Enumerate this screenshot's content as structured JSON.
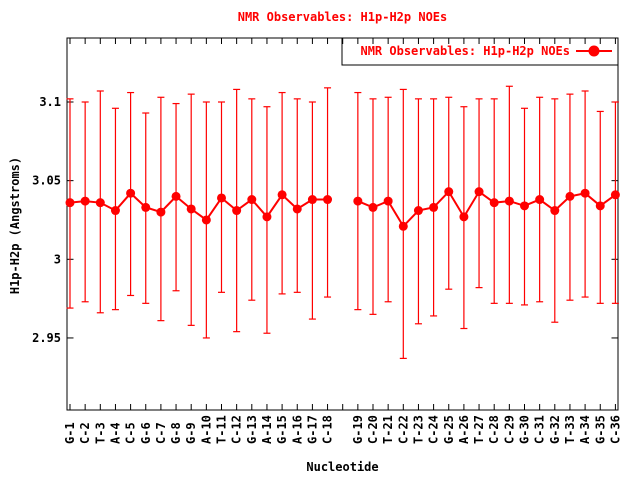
{
  "title": "NMR Observables: H1p-H2p NOEs",
  "colors": {
    "series": "#ff0000",
    "title": "#ff0000",
    "axis": "#000000",
    "background": "#ffffff"
  },
  "x_axis": {
    "title": "Nucleotide",
    "tick_labels": [
      "G-1",
      "C-2",
      "T-3",
      "A-4",
      "C-5",
      "G-6",
      "C-7",
      "G-8",
      "G-9",
      "A-10",
      "T-11",
      "C-12",
      "G-13",
      "A-14",
      "G-15",
      "A-16",
      "G-17",
      "C-18",
      "G-19",
      "C-20",
      "T-21",
      "C-22",
      "T-23",
      "C-24",
      "G-25",
      "A-26",
      "T-27",
      "C-28",
      "C-29",
      "G-30",
      "C-31",
      "G-32",
      "T-33",
      "A-34",
      "G-35",
      "C-36"
    ]
  },
  "y_axis": {
    "title": "H1p-H2p (Angstroms)",
    "tick_labels": [
      "3.1",
      "3.05",
      "3",
      "2.95"
    ],
    "tick_values": [
      3.1,
      3.05,
      3.0,
      2.95
    ]
  },
  "legend": {
    "label": "NMR Observables: H1p-H2p NOEs",
    "marker": "filled-circle-on-line",
    "position": "top-right",
    "boxed": true
  },
  "chart_data": {
    "type": "line",
    "subtype": "points-with-error-bars",
    "title": "NMR Observables: H1p-H2p NOEs",
    "xlabel": "Nucleotide",
    "ylabel": "H1p-H2p (Angstroms)",
    "ylim": [
      2.903,
      3.141
    ],
    "y_ticks": [
      3.1,
      3.05,
      3.0,
      2.95
    ],
    "y_tick_labels": [
      "3.1",
      "3.05",
      "3",
      "2.95"
    ],
    "grid": false,
    "legend_position": "top-right",
    "x_gap_after_category": "C-18",
    "categories": [
      "G-1",
      "C-2",
      "T-3",
      "A-4",
      "C-5",
      "G-6",
      "C-7",
      "G-8",
      "G-9",
      "A-10",
      "T-11",
      "C-12",
      "G-13",
      "A-14",
      "G-15",
      "A-16",
      "G-17",
      "C-18",
      "G-19",
      "C-20",
      "T-21",
      "C-22",
      "T-23",
      "C-24",
      "G-25",
      "A-26",
      "T-27",
      "C-28",
      "C-29",
      "G-30",
      "C-31",
      "G-32",
      "T-33",
      "A-34",
      "G-35",
      "C-36"
    ],
    "series": [
      {
        "name": "NMR Observables: H1p-H2p NOEs",
        "color": "#ff0000",
        "marker": "filled-circle",
        "values": [
          3.036,
          3.037,
          3.036,
          3.031,
          3.042,
          3.033,
          3.03,
          3.04,
          3.032,
          3.025,
          3.039,
          3.031,
          3.038,
          3.027,
          3.041,
          3.032,
          3.038,
          3.038,
          3.037,
          3.033,
          3.037,
          3.021,
          3.031,
          3.033,
          3.043,
          3.027,
          3.043,
          3.036,
          3.037,
          3.034,
          3.038,
          3.031,
          3.04,
          3.042,
          3.034,
          3.041
        ],
        "err_low": [
          2.969,
          2.973,
          2.966,
          2.968,
          2.977,
          2.972,
          2.961,
          2.98,
          2.958,
          2.95,
          2.979,
          2.954,
          2.974,
          2.953,
          2.978,
          2.979,
          2.962,
          2.976,
          2.968,
          2.965,
          2.973,
          2.937,
          2.959,
          2.964,
          2.981,
          2.956,
          2.982,
          2.972,
          2.972,
          2.971,
          2.973,
          2.96,
          2.974,
          2.976,
          2.972,
          2.972
        ],
        "err_high": [
          3.102,
          3.1,
          3.107,
          3.096,
          3.106,
          3.093,
          3.103,
          3.099,
          3.105,
          3.1,
          3.1,
          3.108,
          3.102,
          3.097,
          3.106,
          3.102,
          3.1,
          3.109,
          3.106,
          3.102,
          3.103,
          3.108,
          3.102,
          3.102,
          3.103,
          3.097,
          3.102,
          3.102,
          3.11,
          3.096,
          3.103,
          3.102,
          3.105,
          3.107,
          3.094,
          3.1
        ]
      }
    ]
  }
}
